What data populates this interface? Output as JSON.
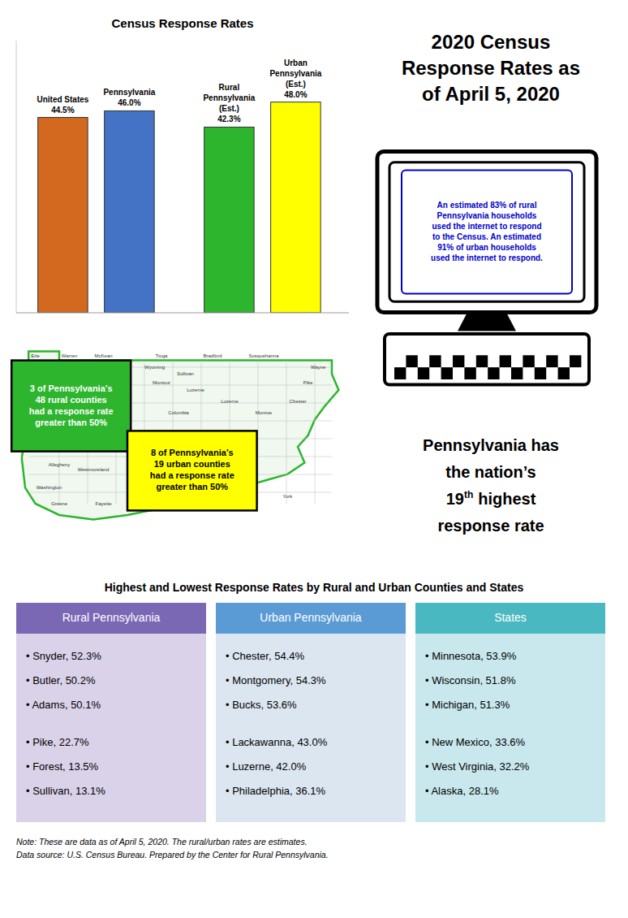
{
  "chart_data": {
    "type": "bar",
    "title": "Census Response Rates",
    "categories": [
      "United States",
      "Pennsylvania",
      "Rural\nPennsylvania\n(Est.)",
      "Urban\nPennsylvania\n(Est.)"
    ],
    "values": [
      44.5,
      46.0,
      42.3,
      48.0
    ],
    "value_labels": [
      "44.5%",
      "46.0%",
      "42.3%",
      "48.0%"
    ],
    "colors": [
      "#d2691e",
      "#4472c4",
      "#2db52d",
      "#ffff00"
    ],
    "ylim": [
      0,
      62
    ],
    "data_labels": true,
    "tick_labels": false,
    "grid": false,
    "annotations": [
      "2020 Census\nResponse Rates as\nof April 5, 2020",
      "An estimated 83% of rural\nPennsylvania households\nused the internet to respond\nto the Census. An estimated\n91% of urban households\nused the internet to respond.",
      "3 of Pennsylvania’s\n48 rural counties\nhad a response rate\ngreater than 50%",
      "8 of Pennsylvania’s\n19 urban counties\nhad a response rate\ngreater than 50%",
      "Pennsylvania has",
      "the nation’s",
      "19",
      "th",
      "highest",
      "response rate",
      "Highest and Lowest Response Rates by Rural and Urban Counties and States",
      "Rural Pennsylvania",
      "Urban Pennsylvania",
      "States",
      "• Snyder, 52.3%",
      "• Butler, 50.2%",
      "• Adams, 50.1%",
      "• Pike, 22.7%",
      "• Forest, 13.5%",
      "• Sullivan, 13.1%",
      "• Chester, 54.4%",
      "• Montgomery, 54.3%",
      "• Bucks, 53.6%",
      "• Lackawanna, 43.0%",
      "• Luzerne, 42.0%",
      "• Philadelphia, 36.1%",
      "• Minnesota, 53.9%",
      "• Wisconsin, 51.8%",
      "• Michigan, 51.3%",
      "• New Mexico, 33.6%",
      "• West Virginia, 32.2%",
      "• Alaska, 28.1%",
      "Note: These are data as of April 5, 2020. The rural/urban rates are estimates.\nData source: U.S. Census Bureau. Prepared by the Center for Rural Pennsylvania.",
      "Erie",
      "Warren",
      "McKean",
      "Tioga",
      "Bradford",
      "Susquehanna",
      "Wayne",
      "Pike",
      "Sullivan",
      "Wyoming",
      "Luzerne",
      "Allegheny",
      "Westmoreland",
      "Washington",
      "Greene",
      "Fayette",
      "York",
      "Chester",
      "Montour",
      "Luzerne",
      "Columbia",
      "Monroe"
    ]
  }
}
